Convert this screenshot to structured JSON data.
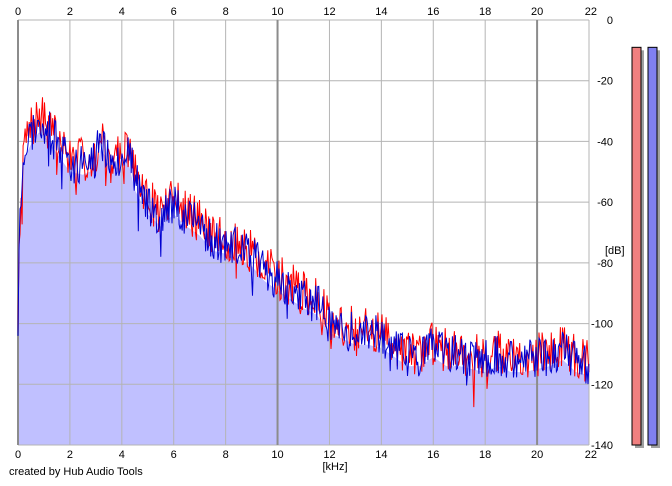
{
  "colors": {
    "background": "#ffffff",
    "plot_fill": "#c0c0ff",
    "grid": "#b4b4b4",
    "grid_major": "#8c8c8c",
    "left_channel": "#ff0000",
    "right_channel": "#0000d0",
    "left_meter": "#f08080",
    "right_meter": "#8080f0",
    "meter_shadow": "#a0a0a0"
  },
  "credit_text": "created by Hub Audio Tools",
  "chart_data": {
    "type": "line",
    "title": "",
    "xlabel": "[kHz]",
    "ylabel": "[dB]",
    "xlim": [
      0,
      22
    ],
    "ylim": [
      -140,
      0
    ],
    "x_ticks": [
      0,
      2,
      4,
      6,
      8,
      10,
      12,
      14,
      16,
      18,
      20,
      22
    ],
    "x_tick_labels": [
      "0",
      "2",
      "4",
      "6",
      "8",
      "10",
      "12",
      "14",
      "16",
      "18",
      "20",
      "22"
    ],
    "y_ticks": [
      0,
      -20,
      -40,
      -60,
      -80,
      -100,
      -120,
      -140
    ],
    "y_tick_labels": [
      "0",
      "-20",
      "-40",
      "-60",
      "-80",
      "-100",
      "-120",
      "-140"
    ],
    "major_x_gridlines": [
      0,
      10,
      20
    ],
    "grid": true,
    "legend": "none",
    "envelope": {
      "x": [
        0,
        0.05,
        0.2,
        0.5,
        0.8,
        1,
        1.5,
        2,
        2.5,
        3,
        3.2,
        3.5,
        4,
        4.2,
        4.5,
        5,
        5.5,
        6,
        6.5,
        7,
        7.5,
        8,
        8.5,
        9,
        9.5,
        10,
        10.5,
        11,
        11.5,
        12,
        12.5,
        13,
        13.5,
        14,
        14.5,
        15,
        15.5,
        16,
        16.5,
        17,
        17.5,
        18,
        18.5,
        19,
        19.5,
        20,
        20.5,
        21,
        21.5,
        22
      ],
      "y": [
        -100,
        -70,
        -42,
        -37,
        -33,
        -34,
        -40,
        -46,
        -47,
        -45,
        -38,
        -44,
        -45,
        -41,
        -52,
        -60,
        -64,
        -60,
        -64,
        -67,
        -72,
        -73,
        -75,
        -77,
        -82,
        -85,
        -88,
        -91,
        -93,
        -99,
        -101,
        -103,
        -103,
        -104,
        -107,
        -110,
        -110,
        -107,
        -110,
        -110,
        -111,
        -112,
        -110,
        -112,
        -112,
        -111,
        -110,
        -108,
        -112,
        -113
      ]
    },
    "series": [
      {
        "name": "",
        "seed": 7,
        "noise_db": 7.5,
        "offset_db": 0.8
      },
      {
        "name": "",
        "seed": 23,
        "noise_db": 7.0,
        "offset_db": -0.5
      }
    ],
    "level_meters": [
      {
        "name": "",
        "top_db": -9
      },
      {
        "name": "",
        "top_db": -9
      }
    ]
  }
}
